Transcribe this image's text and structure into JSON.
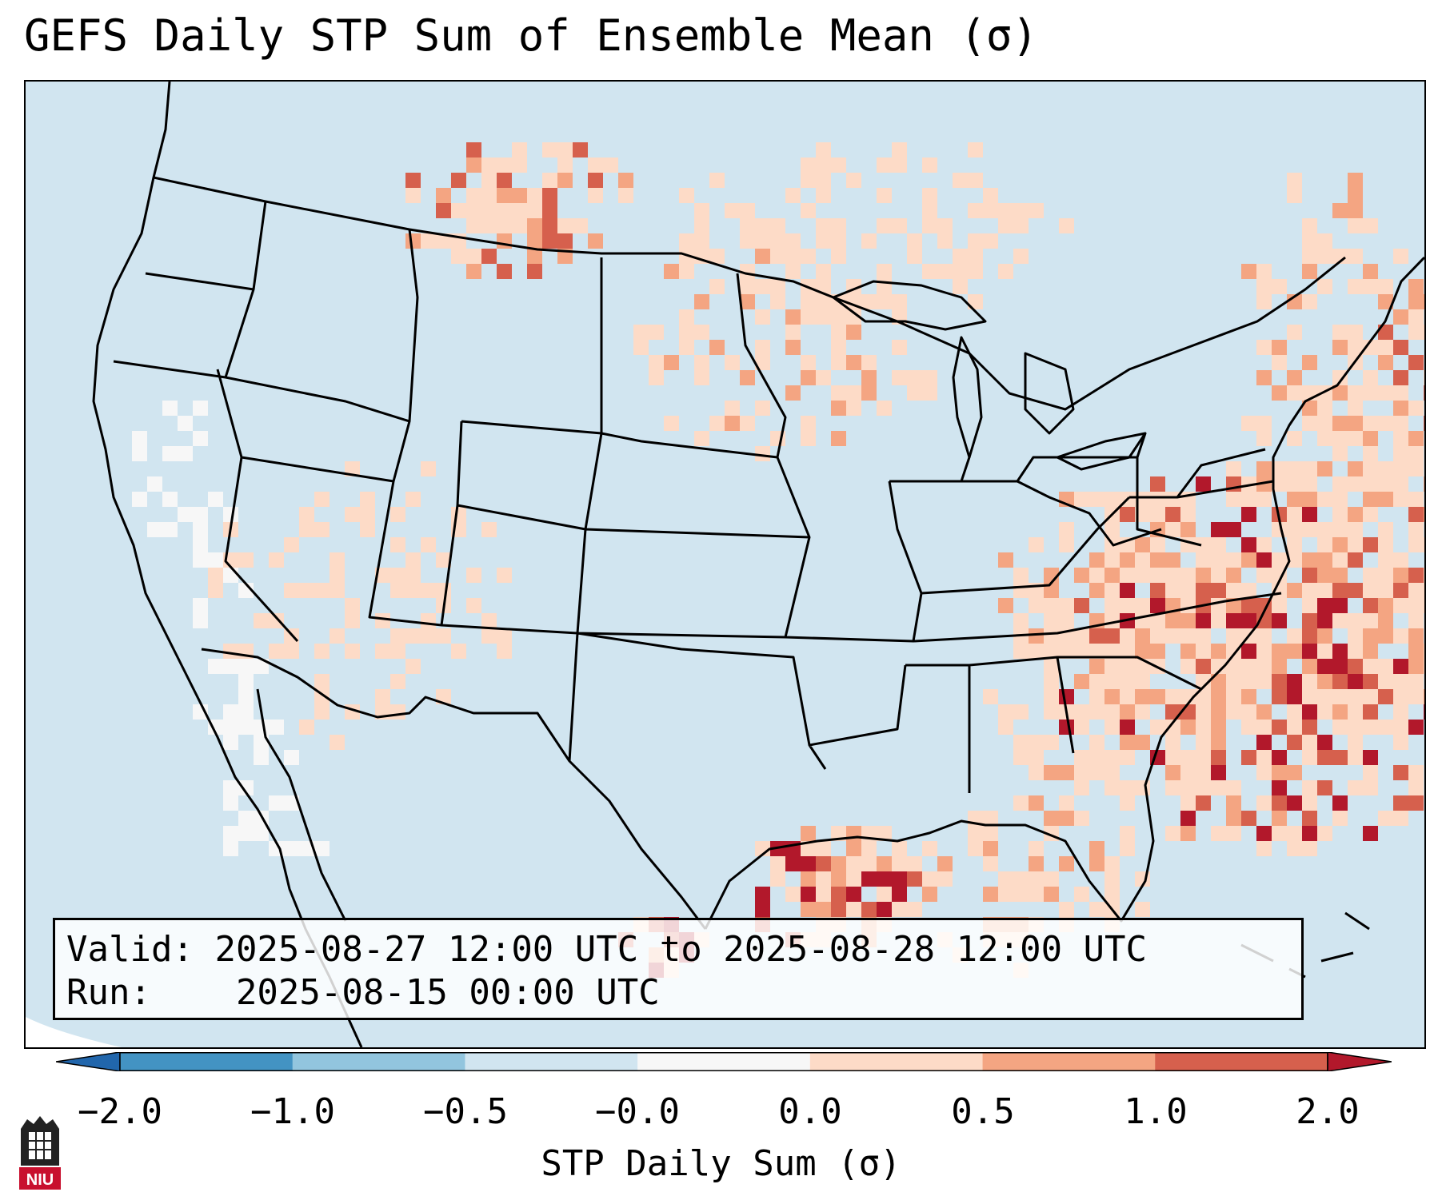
{
  "title": "GEFS Daily STP Sum of Ensemble Mean (σ)",
  "info": {
    "valid_label": "Valid:",
    "valid_value": "2025-08-27 12:00 UTC to 2025-08-28 12:00 UTC",
    "run_label": "Run:",
    "run_value": "2025-08-15 00:00 UTC"
  },
  "colorbar": {
    "label": "STP Daily Sum (σ)",
    "ticks": [
      "−2.0",
      "−1.0",
      "−0.5",
      "−0.0",
      "0.0",
      "0.5",
      "1.0",
      "2.0"
    ],
    "bins": [
      {
        "from": -2.0,
        "to": -1.0,
        "color": "#4393c3"
      },
      {
        "from": -1.0,
        "to": -0.5,
        "color": "#92c5de"
      },
      {
        "from": -0.5,
        "to": -0.0,
        "color": "#d1e5f0"
      },
      {
        "from": -0.0,
        "to": 0.0,
        "color": "#f7f7f7"
      },
      {
        "from": 0.0,
        "to": 0.5,
        "color": "#fddbc7"
      },
      {
        "from": 0.5,
        "to": 1.0,
        "color": "#f4a582"
      },
      {
        "from": 1.0,
        "to": 2.0,
        "color": "#d6604d"
      }
    ],
    "under_color": "#2166ac",
    "over_color": "#b2182b"
  },
  "map": {
    "background_color": "#d1e5f0",
    "outside_color": "#ffffff",
    "line_color": "#000000"
  },
  "logo": {
    "text": "NIU",
    "color": "#c8102e"
  }
}
